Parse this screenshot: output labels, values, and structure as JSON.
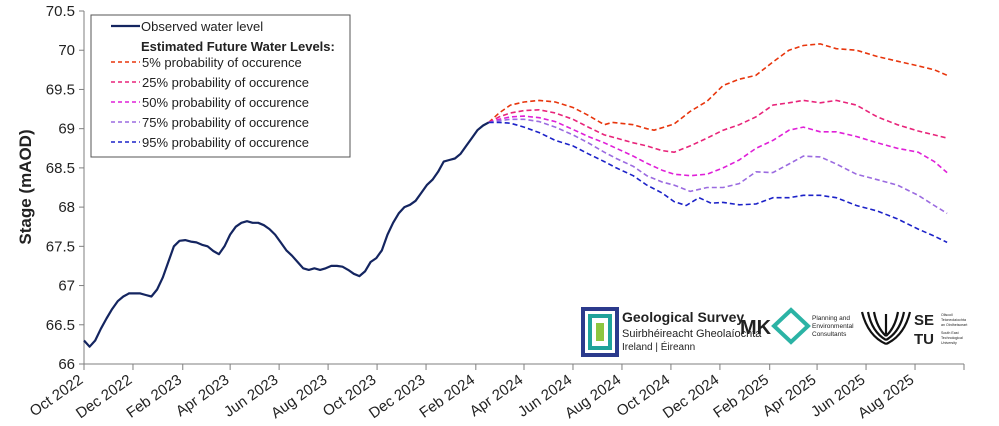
{
  "chart_data": {
    "type": "line",
    "title": "",
    "xlabel": "",
    "ylabel": "Stage (mAOD)",
    "ylim": [
      66,
      70.5
    ],
    "yticks": [
      "66",
      "66.5",
      "67",
      "67.5",
      "68",
      "68.5",
      "69",
      "69.5",
      "70",
      "70.5"
    ],
    "xticks": [
      "Oct 2022",
      "Dec 2022",
      "Feb 2023",
      "Apr 2023",
      "Jun 2023",
      "Aug 2023",
      "Oct 2023",
      "Dec 2023",
      "Feb 2024",
      "Apr 2024",
      "Jun 2024",
      "Aug 2024",
      "Oct 2024",
      "Dec 2024",
      "Feb 2025",
      "Apr 2025",
      "Jun 2025",
      "Aug 2025"
    ],
    "grid": false,
    "legend_position": "top-left",
    "legend_heading": "Estimated Future Water Levels:",
    "series": [
      {
        "name": "Observed water level",
        "color": "#142560",
        "style": "solid",
        "points": [
          [
            "2022-10-01",
            66.3
          ],
          [
            "2022-10-08",
            66.22
          ],
          [
            "2022-10-15",
            66.3
          ],
          [
            "2022-10-22",
            66.45
          ],
          [
            "2022-10-29",
            66.58
          ],
          [
            "2022-11-05",
            66.7
          ],
          [
            "2022-11-12",
            66.8
          ],
          [
            "2022-11-19",
            66.86
          ],
          [
            "2022-11-26",
            66.9
          ],
          [
            "2022-12-03",
            66.9
          ],
          [
            "2022-12-10",
            66.9
          ],
          [
            "2022-12-17",
            66.88
          ],
          [
            "2022-12-24",
            66.86
          ],
          [
            "2022-12-31",
            66.95
          ],
          [
            "2023-01-07",
            67.1
          ],
          [
            "2023-01-14",
            67.3
          ],
          [
            "2023-01-21",
            67.5
          ],
          [
            "2023-01-28",
            67.57
          ],
          [
            "2023-02-04",
            67.58
          ],
          [
            "2023-02-11",
            67.56
          ],
          [
            "2023-02-18",
            67.55
          ],
          [
            "2023-02-25",
            67.52
          ],
          [
            "2023-03-04",
            67.5
          ],
          [
            "2023-03-11",
            67.44
          ],
          [
            "2023-03-18",
            67.4
          ],
          [
            "2023-03-25",
            67.5
          ],
          [
            "2023-04-01",
            67.65
          ],
          [
            "2023-04-08",
            67.75
          ],
          [
            "2023-04-15",
            67.8
          ],
          [
            "2023-04-22",
            67.82
          ],
          [
            "2023-04-29",
            67.8
          ],
          [
            "2023-05-06",
            67.8
          ],
          [
            "2023-05-13",
            67.77
          ],
          [
            "2023-05-20",
            67.72
          ],
          [
            "2023-05-27",
            67.65
          ],
          [
            "2023-06-03",
            67.55
          ],
          [
            "2023-06-10",
            67.45
          ],
          [
            "2023-06-17",
            67.38
          ],
          [
            "2023-06-24",
            67.3
          ],
          [
            "2023-07-01",
            67.22
          ],
          [
            "2023-07-08",
            67.2
          ],
          [
            "2023-07-15",
            67.22
          ],
          [
            "2023-07-22",
            67.2
          ],
          [
            "2023-07-29",
            67.22
          ],
          [
            "2023-08-05",
            67.25
          ],
          [
            "2023-08-12",
            67.25
          ],
          [
            "2023-08-19",
            67.24
          ],
          [
            "2023-08-26",
            67.2
          ],
          [
            "2023-09-02",
            67.15
          ],
          [
            "2023-09-09",
            67.12
          ],
          [
            "2023-09-16",
            67.18
          ],
          [
            "2023-09-23",
            67.3
          ],
          [
            "2023-09-30",
            67.35
          ],
          [
            "2023-10-07",
            67.45
          ],
          [
            "2023-10-14",
            67.65
          ],
          [
            "2023-10-21",
            67.8
          ],
          [
            "2023-10-28",
            67.92
          ],
          [
            "2023-11-04",
            68.0
          ],
          [
            "2023-11-11",
            68.03
          ],
          [
            "2023-11-18",
            68.08
          ],
          [
            "2023-11-25",
            68.18
          ],
          [
            "2023-12-02",
            68.28
          ],
          [
            "2023-12-09",
            68.35
          ],
          [
            "2023-12-16",
            68.45
          ],
          [
            "2023-12-23",
            68.58
          ],
          [
            "2023-12-30",
            68.6
          ],
          [
            "2024-01-06",
            68.62
          ],
          [
            "2024-01-13",
            68.68
          ],
          [
            "2024-01-20",
            68.78
          ],
          [
            "2024-01-27",
            68.88
          ],
          [
            "2024-02-03",
            68.98
          ],
          [
            "2024-02-10",
            69.04
          ],
          [
            "2024-02-17",
            69.08
          ]
        ]
      },
      {
        "name": "5% probability of occurence",
        "color": "#e8350c",
        "style": "dashed",
        "points": [
          [
            "2024-02-17",
            69.08
          ],
          [
            "2024-03-01",
            69.2
          ],
          [
            "2024-03-15",
            69.3
          ],
          [
            "2024-04-01",
            69.34
          ],
          [
            "2024-04-20",
            69.36
          ],
          [
            "2024-05-10",
            69.34
          ],
          [
            "2024-06-01",
            69.27
          ],
          [
            "2024-06-20",
            69.17
          ],
          [
            "2024-07-10",
            69.05
          ],
          [
            "2024-07-20",
            69.08
          ],
          [
            "2024-08-15",
            69.05
          ],
          [
            "2024-09-01",
            69.0
          ],
          [
            "2024-09-10",
            68.98
          ],
          [
            "2024-10-05",
            69.06
          ],
          [
            "2024-10-25",
            69.22
          ],
          [
            "2024-11-15",
            69.35
          ],
          [
            "2024-12-05",
            69.55
          ],
          [
            "2024-12-25",
            69.63
          ],
          [
            "2025-01-15",
            69.68
          ],
          [
            "2025-02-05",
            69.85
          ],
          [
            "2025-02-25",
            70.0
          ],
          [
            "2025-03-15",
            70.06
          ],
          [
            "2025-04-05",
            70.08
          ],
          [
            "2025-04-25",
            70.02
          ],
          [
            "2025-05-20",
            70.0
          ],
          [
            "2025-06-15",
            69.92
          ],
          [
            "2025-07-10",
            69.86
          ],
          [
            "2025-08-05",
            69.8
          ],
          [
            "2025-08-25",
            69.75
          ],
          [
            "2025-09-10",
            69.68
          ]
        ]
      },
      {
        "name": "25% probability of occurence",
        "color": "#e8247a",
        "style": "dashed",
        "points": [
          [
            "2024-02-17",
            69.08
          ],
          [
            "2024-03-01",
            69.15
          ],
          [
            "2024-03-15",
            69.2
          ],
          [
            "2024-04-01",
            69.23
          ],
          [
            "2024-04-20",
            69.24
          ],
          [
            "2024-05-10",
            69.2
          ],
          [
            "2024-06-01",
            69.12
          ],
          [
            "2024-06-20",
            69.02
          ],
          [
            "2024-07-10",
            68.92
          ],
          [
            "2024-07-25",
            68.88
          ],
          [
            "2024-08-15",
            68.82
          ],
          [
            "2024-09-01",
            68.78
          ],
          [
            "2024-09-20",
            68.72
          ],
          [
            "2024-10-05",
            68.7
          ],
          [
            "2024-10-25",
            68.78
          ],
          [
            "2024-11-15",
            68.88
          ],
          [
            "2024-12-05",
            68.98
          ],
          [
            "2024-12-25",
            69.05
          ],
          [
            "2025-01-15",
            69.15
          ],
          [
            "2025-02-05",
            69.3
          ],
          [
            "2025-02-25",
            69.33
          ],
          [
            "2025-03-15",
            69.36
          ],
          [
            "2025-04-05",
            69.33
          ],
          [
            "2025-04-25",
            69.36
          ],
          [
            "2025-05-20",
            69.3
          ],
          [
            "2025-06-15",
            69.15
          ],
          [
            "2025-07-10",
            69.05
          ],
          [
            "2025-08-05",
            68.97
          ],
          [
            "2025-08-25",
            68.92
          ],
          [
            "2025-09-10",
            68.88
          ]
        ]
      },
      {
        "name": "50% probability of occurence",
        "color": "#e020d8",
        "style": "dashed",
        "points": [
          [
            "2024-02-17",
            69.08
          ],
          [
            "2024-03-01",
            69.12
          ],
          [
            "2024-03-15",
            69.15
          ],
          [
            "2024-04-01",
            69.16
          ],
          [
            "2024-04-20",
            69.14
          ],
          [
            "2024-05-10",
            69.09
          ],
          [
            "2024-06-01",
            68.99
          ],
          [
            "2024-06-20",
            68.9
          ],
          [
            "2024-07-10",
            68.82
          ],
          [
            "2024-07-25",
            68.75
          ],
          [
            "2024-08-15",
            68.65
          ],
          [
            "2024-09-01",
            68.56
          ],
          [
            "2024-09-20",
            68.47
          ],
          [
            "2024-10-05",
            68.42
          ],
          [
            "2024-10-25",
            68.4
          ],
          [
            "2024-11-15",
            68.42
          ],
          [
            "2024-12-05",
            68.5
          ],
          [
            "2024-12-25",
            68.6
          ],
          [
            "2025-01-15",
            68.75
          ],
          [
            "2025-02-05",
            68.85
          ],
          [
            "2025-02-25",
            68.98
          ],
          [
            "2025-03-15",
            69.02
          ],
          [
            "2025-04-05",
            68.96
          ],
          [
            "2025-04-25",
            68.96
          ],
          [
            "2025-05-20",
            68.9
          ],
          [
            "2025-06-15",
            68.82
          ],
          [
            "2025-07-10",
            68.75
          ],
          [
            "2025-08-05",
            68.7
          ],
          [
            "2025-08-25",
            68.58
          ],
          [
            "2025-09-10",
            68.44
          ]
        ]
      },
      {
        "name": "75% probability of occurence",
        "color": "#9b6be0",
        "style": "dashed",
        "points": [
          [
            "2024-02-17",
            69.08
          ],
          [
            "2024-03-01",
            69.1
          ],
          [
            "2024-03-15",
            69.12
          ],
          [
            "2024-04-01",
            69.12
          ],
          [
            "2024-04-20",
            69.09
          ],
          [
            "2024-05-10",
            69.02
          ],
          [
            "2024-06-01",
            68.92
          ],
          [
            "2024-06-20",
            68.82
          ],
          [
            "2024-07-10",
            68.7
          ],
          [
            "2024-07-25",
            68.62
          ],
          [
            "2024-08-15",
            68.52
          ],
          [
            "2024-09-01",
            68.4
          ],
          [
            "2024-09-20",
            68.32
          ],
          [
            "2024-10-05",
            68.28
          ],
          [
            "2024-10-25",
            68.2
          ],
          [
            "2024-11-15",
            68.25
          ],
          [
            "2024-12-05",
            68.25
          ],
          [
            "2024-12-25",
            68.3
          ],
          [
            "2025-01-15",
            68.45
          ],
          [
            "2025-02-05",
            68.44
          ],
          [
            "2025-02-25",
            68.55
          ],
          [
            "2025-03-15",
            68.65
          ],
          [
            "2025-04-05",
            68.64
          ],
          [
            "2025-04-25",
            68.55
          ],
          [
            "2025-05-20",
            68.42
          ],
          [
            "2025-06-15",
            68.35
          ],
          [
            "2025-07-10",
            68.28
          ],
          [
            "2025-08-05",
            68.15
          ],
          [
            "2025-08-25",
            68.02
          ],
          [
            "2025-09-10",
            67.92
          ]
        ]
      },
      {
        "name": "95% probability of occurence",
        "color": "#1c22c8",
        "style": "dashed",
        "points": [
          [
            "2024-02-17",
            69.08
          ],
          [
            "2024-03-01",
            69.08
          ],
          [
            "2024-03-15",
            69.07
          ],
          [
            "2024-04-01",
            69.02
          ],
          [
            "2024-04-20",
            68.95
          ],
          [
            "2024-05-10",
            68.85
          ],
          [
            "2024-06-01",
            68.78
          ],
          [
            "2024-06-20",
            68.68
          ],
          [
            "2024-07-10",
            68.58
          ],
          [
            "2024-07-25",
            68.5
          ],
          [
            "2024-08-15",
            68.4
          ],
          [
            "2024-09-01",
            68.28
          ],
          [
            "2024-09-20",
            68.18
          ],
          [
            "2024-10-05",
            68.07
          ],
          [
            "2024-10-20",
            68.02
          ],
          [
            "2024-11-05",
            68.12
          ],
          [
            "2024-11-20",
            68.05
          ],
          [
            "2024-12-05",
            68.06
          ],
          [
            "2024-12-25",
            68.03
          ],
          [
            "2025-01-15",
            68.04
          ],
          [
            "2025-02-05",
            68.12
          ],
          [
            "2025-02-25",
            68.12
          ],
          [
            "2025-03-15",
            68.15
          ],
          [
            "2025-04-05",
            68.15
          ],
          [
            "2025-04-25",
            68.12
          ],
          [
            "2025-05-20",
            68.02
          ],
          [
            "2025-06-15",
            67.95
          ],
          [
            "2025-07-10",
            67.85
          ],
          [
            "2025-08-05",
            67.72
          ],
          [
            "2025-08-25",
            67.63
          ],
          [
            "2025-09-10",
            67.55
          ]
        ]
      }
    ]
  },
  "logos": {
    "gsi": {
      "name": "Geological Survey",
      "line2": "Suirbhéireacht Gheolaíochta",
      "line3": "Ireland | Éireann",
      "color_main": "#2b3a8c",
      "color_accent": "#1fa39a"
    },
    "mko": {
      "name": "MKO",
      "tagline": [
        "Planning and",
        "Environmental",
        "Consultants"
      ],
      "color": "#2a2a2a",
      "accent": "#2bb3a5"
    },
    "setu": {
      "name_top": "SE",
      "name_bottom": "TU",
      "text": [
        "Ollscoil",
        "Teicneolaíochta",
        "an Oirdheisceart",
        "South East",
        "Technological",
        "University"
      ],
      "color": "#111111"
    }
  }
}
